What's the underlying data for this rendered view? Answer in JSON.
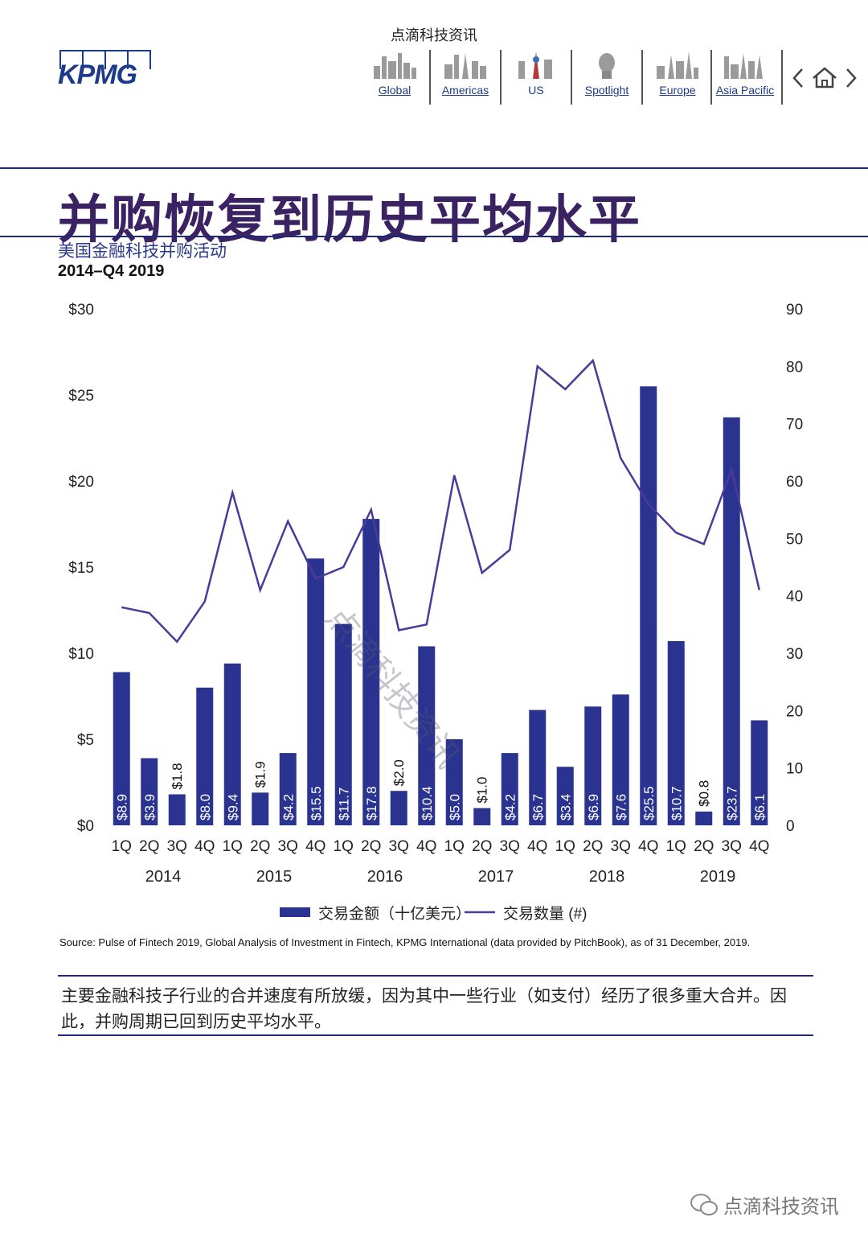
{
  "header": {
    "caption": "点滴科技资讯",
    "logo_text": "KPMG",
    "nav": [
      {
        "label": "Global",
        "icon": "global-skyline-icon"
      },
      {
        "label": "Americas",
        "icon": "americas-skyline-icon"
      },
      {
        "label": "US",
        "icon": "us-skyline-icon"
      },
      {
        "label": "Spotlight",
        "icon": "spotlight-icon"
      },
      {
        "label": "Europe",
        "icon": "europe-skyline-icon"
      },
      {
        "label": "Asia Pacific",
        "icon": "asia-pacific-skyline-icon"
      }
    ],
    "nav_controls": {
      "prev": "‹",
      "home": "home-icon",
      "next": "›"
    }
  },
  "page": {
    "title": "并购恢复到历史平均水平",
    "subtitle": "美国金融科技并购活动",
    "date_range": "2014–Q4 2019",
    "source": "Source: Pulse of Fintech 2019, Global Analysis of Investment in Fintech, KPMG International (data provided by PitchBook), as of 31 December, 2019.",
    "note": "主要金融科技子行业的合并速度有所放缓，因为其中一些行业（如支付）经历了很多重大合并。因此，并购周期已回到历史平均水平。",
    "watermark": "点滴科技资讯",
    "footer_brand": "点滴科技资讯"
  },
  "colors": {
    "bar": "#2a3390",
    "line": "#4b3a9a",
    "title": "#3b2363",
    "rule": "#1e2a78"
  },
  "chart_data": {
    "type": "bar",
    "title": "美国金融科技并购活动",
    "subtitle": "2014–Q4 2019",
    "quarters": [
      "1Q",
      "2Q",
      "3Q",
      "4Q",
      "1Q",
      "2Q",
      "3Q",
      "4Q",
      "1Q",
      "2Q",
      "3Q",
      "4Q",
      "1Q",
      "2Q",
      "3Q",
      "4Q",
      "1Q",
      "2Q",
      "3Q",
      "4Q",
      "1Q",
      "2Q",
      "3Q",
      "4Q"
    ],
    "years": [
      "2014",
      "2015",
      "2016",
      "2017",
      "2018",
      "2019"
    ],
    "series": [
      {
        "name": "交易金额（十亿美元）",
        "type": "bar",
        "axis": "left",
        "values": [
          8.9,
          3.9,
          1.8,
          8.0,
          9.4,
          1.9,
          4.2,
          15.5,
          11.7,
          17.8,
          2.0,
          10.4,
          5.0,
          1.0,
          4.2,
          6.7,
          3.4,
          6.9,
          7.6,
          25.5,
          10.7,
          0.8,
          23.7,
          6.1
        ],
        "labels": [
          "$8.9",
          "$3.9",
          "$1.8",
          "$8.0",
          "$9.4",
          "$1.9",
          "$4.2",
          "$15.5",
          "$11.7",
          "$17.8",
          "$2.0",
          "$10.4",
          "$5.0",
          "$1.0",
          "$4.2",
          "$6.7",
          "$3.4",
          "$6.9",
          "$7.6",
          "$25.5",
          "$10.7",
          "$0.8",
          "$23.7",
          "$6.1"
        ]
      },
      {
        "name": "交易数量 (#)",
        "type": "line",
        "axis": "right",
        "values": [
          38,
          37,
          32,
          39,
          58,
          41,
          53,
          43,
          45,
          55,
          34,
          35,
          61,
          44,
          48,
          80,
          76,
          81,
          64,
          56,
          51,
          49,
          62,
          41
        ]
      }
    ],
    "y_left": {
      "ticks": [
        "$0",
        "$5",
        "$10",
        "$15",
        "$20",
        "$25",
        "$30"
      ],
      "range": [
        0,
        30
      ]
    },
    "y_right": {
      "ticks": [
        "0",
        "10",
        "20",
        "30",
        "40",
        "50",
        "60",
        "70",
        "80",
        "90"
      ],
      "range": [
        0,
        90
      ]
    },
    "legend": [
      {
        "label": "交易金额（十亿美元）",
        "kind": "bar"
      },
      {
        "label": "交易数量 (#)",
        "kind": "line"
      }
    ],
    "legend_position": "bottom-center",
    "grid": false
  }
}
